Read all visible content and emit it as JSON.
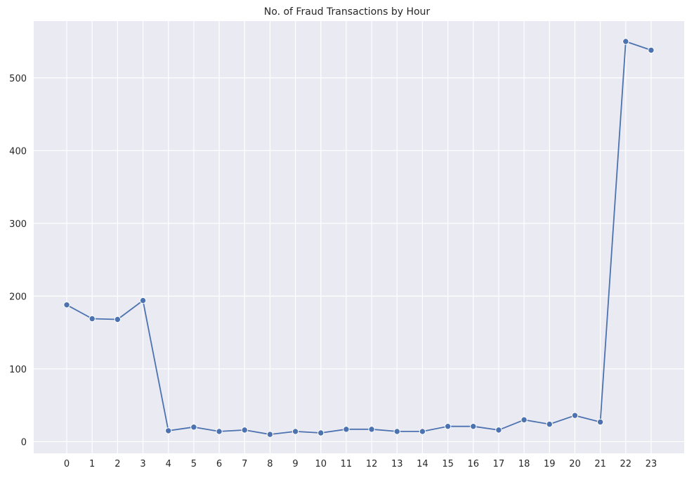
{
  "chart_data": {
    "type": "line",
    "title": "No. of Fraud Transactions by Hour",
    "xlabel": "",
    "ylabel": "",
    "x": [
      0,
      1,
      2,
      3,
      4,
      5,
      6,
      7,
      8,
      9,
      10,
      11,
      12,
      13,
      14,
      15,
      16,
      17,
      18,
      19,
      20,
      21,
      22,
      23
    ],
    "series": [
      {
        "values": [
          188,
          169,
          168,
          194,
          15,
          20,
          14,
          16,
          10,
          14,
          12,
          17,
          17,
          14,
          14,
          21,
          21,
          16,
          30,
          24,
          36,
          27,
          550,
          538
        ]
      }
    ],
    "xlim": [
      -1.3,
      24.3
    ],
    "ylim": [
      -16,
      578
    ],
    "yticks": [
      0,
      100,
      200,
      300,
      400,
      500
    ],
    "grid": true,
    "marker": "circle",
    "colors": {
      "background": "#eaeaf2",
      "grid": "#ffffff",
      "line": "#4c72b0",
      "marker_edge": "#ffffff"
    }
  }
}
